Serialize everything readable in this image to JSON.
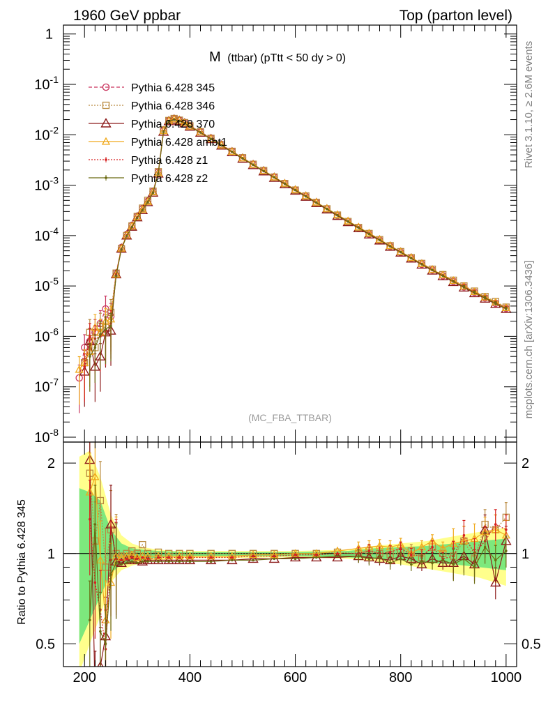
{
  "header": {
    "left": "1960 GeV ppbar",
    "right": "Top (parton level)"
  },
  "side_labels": {
    "rivet": "Rivet 3.1.10, ≥ 2.6M events",
    "mcplots": "mcplots.cern.ch [arXiv:1306.3436]"
  },
  "chart_data": [
    {
      "type": "line",
      "title": "M (ttbar) (pTtt < 50 dy > 0)",
      "title_main": "M",
      "title_sub": "(ttbar) (pTtt < 50 dy > 0)",
      "analysis_label": "(MC_FBA_TTBAR)",
      "xlim": [
        160,
        1020
      ],
      "ylim": [
        8e-09,
        1.5
      ],
      "yscale": "log",
      "yticks": [
        {
          "base": "10",
          "exp": "-8"
        },
        {
          "base": "10",
          "exp": "-7"
        },
        {
          "base": "10",
          "exp": "-6"
        },
        {
          "base": "10",
          "exp": "-5"
        },
        {
          "base": "10",
          "exp": "-4"
        },
        {
          "base": "10",
          "exp": "-3"
        },
        {
          "base": "10",
          "exp": "-2"
        },
        {
          "base": "10",
          "exp": "-1"
        },
        {
          "base": "1",
          "exp": ""
        }
      ],
      "legend_position": "top-left",
      "x": [
        190,
        200,
        210,
        220,
        230,
        240,
        250,
        260,
        270,
        280,
        290,
        300,
        310,
        320,
        330,
        340,
        350,
        360,
        370,
        380,
        390,
        400,
        420,
        440,
        460,
        480,
        500,
        520,
        540,
        560,
        580,
        600,
        620,
        640,
        660,
        680,
        700,
        720,
        740,
        760,
        780,
        800,
        820,
        840,
        860,
        880,
        900,
        920,
        940,
        960,
        980,
        1000
      ],
      "series": [
        {
          "name": "Pythia 6.428 345",
          "color": "#c9345e",
          "marker": "circle",
          "dash": "5,3",
          "values": [
            1.5e-07,
            6e-07,
            8e-07,
            1.2e-06,
            1.8e-06,
            3.5e-06,
            2.5e-06,
            1.8e-05,
            5.8e-05,
            0.000105,
            0.00016,
            0.00024,
            0.00034,
            0.00048,
            0.00075,
            0.0018,
            0.012,
            0.019,
            0.021,
            0.0195,
            0.0175,
            0.015,
            0.0115,
            0.0086,
            0.0064,
            0.0047,
            0.0035,
            0.0026,
            0.00195,
            0.00145,
            0.00108,
            0.0008,
            0.0006,
            0.00045,
            0.000335,
            0.00025,
            0.000188,
            0.000142,
            0.000107,
            8.1e-05,
            6.1e-05,
            4.65e-05,
            3.55e-05,
            2.7e-05,
            2.08e-05,
            1.6e-05,
            1.24e-05,
            9.6e-06,
            7.5e-06,
            5.8e-06,
            4.55e-06,
            3.6e-06
          ]
        },
        {
          "name": "Pythia 6.428 346",
          "color": "#b98a40",
          "marker": "square",
          "dash": "2,2",
          "values": [
            null,
            3e-07,
            1.2e-06,
            6e-07,
            1.6e-06,
            1.5e-06,
            3e-06,
            1.8e-05,
            5.5e-05,
            0.0001,
            0.000155,
            0.00024,
            0.00035,
            0.0005,
            0.00076,
            0.00185,
            0.0125,
            0.0192,
            0.021,
            0.0195,
            0.0174,
            0.015,
            0.0115,
            0.0085,
            0.0063,
            0.0047,
            0.0035,
            0.0026,
            0.00195,
            0.00145,
            0.00108,
            0.0008,
            0.00061,
            0.000455,
            0.00034,
            0.000255,
            0.00019,
            0.000145,
            0.00011,
            8.3e-05,
            6.3e-05,
            4.8e-05,
            3.65e-05,
            2.8e-05,
            2.15e-05,
            1.68e-05,
            1.3e-05,
            1e-05,
            7.9e-06,
            6.2e-06,
            4.9e-06,
            3.8e-06
          ]
        },
        {
          "name": "Pythia 6.428 370",
          "color": "#8c1a1a",
          "marker": "triangle",
          "dash": "",
          "values": [
            null,
            2e-07,
            8e-07,
            2.5e-07,
            4e-07,
            1.2e-06,
            1.3e-06,
            1.7e-05,
            5.5e-05,
            0.0001,
            0.00015,
            0.00023,
            0.00032,
            0.00046,
            0.00071,
            0.0017,
            0.0115,
            0.0185,
            0.02,
            0.0188,
            0.0168,
            0.0145,
            0.011,
            0.0082,
            0.0061,
            0.0045,
            0.00335,
            0.0025,
            0.00188,
            0.0014,
            0.00104,
            0.00078,
            0.00059,
            0.00044,
            0.00033,
            0.000245,
            0.000185,
            0.00014,
            0.000105,
            8e-05,
            6e-05,
            4.6e-05,
            3.5e-05,
            2.65e-05,
            2.02e-05,
            1.56e-05,
            1.2e-05,
            9.3e-06,
            7.2e-06,
            5.6e-06,
            4.4e-06,
            3.5e-06
          ]
        },
        {
          "name": "Pythia 6.428 ambt1",
          "color": "#f0a91c",
          "marker": "triangle-small",
          "dash": "",
          "values": [
            2.2e-07,
            3e-07,
            5e-07,
            1.5e-06,
            1.2e-06,
            2e-06,
            2.2e-06,
            1.7e-05,
            5.6e-05,
            0.000102,
            0.000155,
            0.000235,
            0.00033,
            0.00047,
            0.00073,
            0.00175,
            0.012,
            0.019,
            0.0205,
            0.0192,
            0.0172,
            0.0148,
            0.0113,
            0.0084,
            0.00625,
            0.00465,
            0.00345,
            0.00258,
            0.00194,
            0.00145,
            0.00109,
            0.000815,
            0.000615,
            0.00046,
            0.000345,
            0.00026,
            0.000195,
            0.000148,
            0.000112,
            8.4e-05,
            6.3e-05,
            4.8e-05,
            3.65e-05,
            2.78e-05,
            2.12e-05,
            1.65e-05,
            1.28e-05,
            9.9e-06,
            7.7e-06,
            6e-06,
            4.75e-06,
            3.7e-06
          ]
        },
        {
          "name": "Pythia 6.428 z1",
          "color": "#d62020",
          "marker": "dot",
          "dash": "2,2",
          "values": [
            null,
            2.5e-07,
            1e-06,
            9e-07,
            1e-06,
            1.3e-06,
            1.8e-06,
            1.7e-05,
            5.4e-05,
            0.0001,
            0.00015,
            0.00023,
            0.000325,
            0.000465,
            0.00072,
            0.00172,
            0.0118,
            0.0188,
            0.0203,
            0.019,
            0.017,
            0.0146,
            0.0112,
            0.0083,
            0.0062,
            0.0046,
            0.00342,
            0.00255,
            0.00192,
            0.00144,
            0.00108,
            0.00081,
            0.00061,
            0.000455,
            0.00034,
            0.000255,
            0.000192,
            0.000146,
            0.00011,
            8.3e-05,
            6.2e-05,
            4.75e-05,
            3.6e-05,
            2.75e-05,
            2.1e-05,
            1.63e-05,
            1.26e-05,
            9.8e-06,
            7.6e-06,
            5.9e-06,
            4.65e-06,
            3.65e-06
          ]
        },
        {
          "name": "Pythia 6.428 z2",
          "color": "#6b6a12",
          "marker": "dot",
          "dash": "",
          "values": [
            null,
            null,
            4e-07,
            6e-07,
            1.1e-06,
            1.4e-06,
            1.6e-06,
            1.6e-05,
            5.3e-05,
            9.8e-05,
            0.000148,
            0.000225,
            0.00032,
            0.00046,
            0.00071,
            0.0017,
            0.0116,
            0.0186,
            0.02,
            0.0188,
            0.0168,
            0.0145,
            0.0111,
            0.00825,
            0.00615,
            0.00457,
            0.0034,
            0.00254,
            0.0019,
            0.00143,
            0.00107,
            0.0008,
            0.0006,
            0.00045,
            0.000338,
            0.000252,
            0.00019,
            0.000144,
            0.000108,
            8.2e-05,
            6.15e-05,
            4.7e-05,
            3.55e-05,
            2.7e-05,
            2.07e-05,
            1.6e-05,
            1.23e-05,
            9.5e-06,
            7.4e-06,
            5.8e-06,
            4.5e-06,
            3.55e-06
          ]
        }
      ]
    },
    {
      "type": "line",
      "ylabel": "Ratio to Pythia 6.428 345",
      "xlim": [
        160,
        1020
      ],
      "ylim": [
        0.42,
        2.35
      ],
      "yscale": "log",
      "yticks": [
        "0.5",
        "1",
        "2"
      ],
      "xticks": [
        "200",
        "400",
        "600",
        "800",
        "1000"
      ],
      "reference_line": 1,
      "band_x": [
        190,
        210,
        230,
        250,
        270,
        290,
        310,
        340,
        370,
        400,
        450,
        500,
        550,
        600,
        650,
        700,
        750,
        800,
        850,
        900,
        950,
        1000
      ],
      "band_yellow_low": [
        0.4,
        0.5,
        0.62,
        0.8,
        0.88,
        0.91,
        0.93,
        0.95,
        0.96,
        0.965,
        0.965,
        0.965,
        0.97,
        0.97,
        0.965,
        0.96,
        0.94,
        0.92,
        0.89,
        0.86,
        0.83,
        0.78
      ],
      "band_yellow_high": [
        2.1,
        2.2,
        1.8,
        1.35,
        1.15,
        1.08,
        1.05,
        1.03,
        1.02,
        1.02,
        1.02,
        1.02,
        1.02,
        1.02,
        1.025,
        1.03,
        1.06,
        1.08,
        1.1,
        1.14,
        1.18,
        1.22
      ],
      "band_green_low": [
        0.5,
        0.6,
        0.72,
        0.86,
        0.92,
        0.94,
        0.95,
        0.97,
        0.975,
        0.98,
        0.98,
        0.98,
        0.98,
        0.98,
        0.975,
        0.97,
        0.96,
        0.95,
        0.93,
        0.92,
        0.9,
        0.88
      ],
      "band_green_high": [
        1.65,
        1.6,
        1.5,
        1.2,
        1.08,
        1.04,
        1.03,
        1.02,
        1.015,
        1.01,
        1.01,
        1.01,
        1.01,
        1.01,
        1.015,
        1.02,
        1.04,
        1.05,
        1.06,
        1.08,
        1.1,
        1.12
      ],
      "x": [
        190,
        210,
        220,
        230,
        240,
        250,
        260,
        270,
        280,
        290,
        300,
        310,
        320,
        340,
        360,
        380,
        400,
        440,
        480,
        520,
        560,
        600,
        640,
        680,
        720,
        740,
        760,
        780,
        800,
        820,
        840,
        860,
        880,
        900,
        920,
        940,
        960,
        980,
        1000
      ],
      "series": [
        {
          "name": "Pythia 6.428 346",
          "color": "#b98a40",
          "marker": "square",
          "dash": "2,2",
          "values": [
            null,
            1.85,
            1.1,
            1.5,
            0.9,
            1.2,
            1.0,
            0.98,
            1.0,
            1.02,
            1.0,
            1.07,
            1.0,
            1.01,
            1.0,
            1.0,
            1.0,
            1.0,
            1.0,
            1.0,
            1.0,
            1.0,
            1.0,
            1.01,
            1.0,
            1.02,
            1.0,
            0.99,
            1.01,
            1.02,
            0.97,
            1.05,
            1.0,
            0.98,
            1.1,
            0.96,
            1.25,
            1.2,
            1.32
          ]
        },
        {
          "name": "Pythia 6.428 370",
          "color": "#8c1a1a",
          "marker": "triangle",
          "dash": "",
          "values": [
            null,
            2.05,
            0.35,
            0.42,
            0.53,
            1.25,
            0.94,
            0.93,
            0.95,
            0.96,
            0.95,
            0.94,
            0.95,
            0.95,
            0.95,
            0.95,
            0.95,
            0.95,
            0.95,
            0.96,
            0.96,
            0.97,
            0.97,
            0.97,
            0.98,
            0.97,
            0.96,
            0.95,
            0.98,
            0.96,
            0.92,
            0.96,
            0.93,
            0.93,
            0.98,
            0.92,
            1.2,
            0.8,
            1.1
          ]
        },
        {
          "name": "Pythia 6.428 ambt1",
          "color": "#f0a91c",
          "marker": "triangle-small",
          "dash": "",
          "values": [
            null,
            1.6,
            1.8,
            0.95,
            0.6,
            0.8,
            0.98,
            0.97,
            0.98,
            0.99,
            0.97,
            0.98,
            0.98,
            0.98,
            0.98,
            0.98,
            0.98,
            0.98,
            0.98,
            0.99,
            0.99,
            1.0,
            1.0,
            1.02,
            1.04,
            1.05,
            1.06,
            1.05,
            1.07,
            1.0,
            1.05,
            1.1,
            1.04,
            1.08,
            1.1,
            1.12,
            1.18,
            1.2,
            1.15
          ]
        },
        {
          "name": "Pythia 6.428 z1",
          "color": "#d62020",
          "marker": "dot",
          "dash": "2,2",
          "values": [
            null,
            1.3,
            0.8,
            0.65,
            0.48,
            0.95,
            0.96,
            0.95,
            0.96,
            0.97,
            0.96,
            0.97,
            0.96,
            0.97,
            0.97,
            0.97,
            0.97,
            0.97,
            0.97,
            0.98,
            0.98,
            0.99,
            0.99,
            1.0,
            1.0,
            1.02,
            1.0,
            1.01,
            1.04,
            0.99,
            0.98,
            1.05,
            0.96,
            0.98,
            1.15,
            1.0,
            1.1,
            1.25,
            1.2
          ]
        },
        {
          "name": "Pythia 6.428 z2",
          "color": "#6b6a12",
          "marker": "dot",
          "dash": "",
          "values": [
            null,
            0.6,
            1.25,
            0.55,
            0.5,
            0.85,
            0.93,
            0.92,
            0.93,
            0.94,
            0.93,
            0.94,
            0.94,
            0.94,
            0.94,
            0.94,
            0.94,
            0.94,
            0.95,
            0.95,
            0.96,
            0.96,
            0.97,
            0.98,
            0.98,
            0.96,
            0.97,
            0.93,
            0.96,
            0.92,
            0.94,
            0.93,
            0.95,
            0.92,
            0.96,
            0.9,
            1.05,
            0.95,
            1.02
          ]
        }
      ]
    }
  ]
}
